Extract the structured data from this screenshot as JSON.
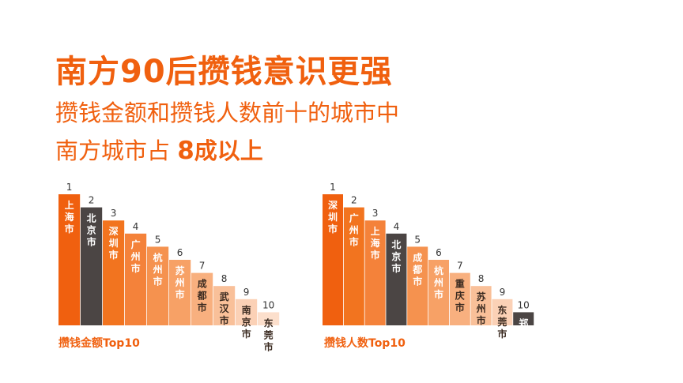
{
  "header": {
    "title": "南方90后攒钱意识更强",
    "subtitle_line1": "攒钱金额和攒钱人数前十的城市中",
    "subtitle_line2_a": "南方城市占 ",
    "subtitle_line2_num": "8",
    "subtitle_line2_b": "成以上"
  },
  "colors": {
    "accent": "#f0600f",
    "dark": "#4b4544",
    "gradient": [
      "#f0600f",
      "#f2741f",
      "#f4823a",
      "#f5924f",
      "#f7a166",
      "#f8b07f",
      "#f9c099",
      "#fbd1b6",
      "#fcdfcc"
    ]
  },
  "chart_data": [
    {
      "type": "bar",
      "caption": "攒钱金额Top10",
      "ranks": [
        "1",
        "2",
        "3",
        "4",
        "5",
        "6",
        "7",
        "8",
        "9",
        "10"
      ],
      "categories": [
        "上海市",
        "北京市",
        "深圳市",
        "广州市",
        "杭州市",
        "苏州市",
        "成都市",
        "武汉市",
        "南京市",
        "东莞市"
      ],
      "values": [
        10,
        9,
        8,
        7,
        6,
        5,
        4,
        3,
        2,
        1
      ],
      "highlight": "北京市"
    },
    {
      "type": "bar",
      "caption": "攒钱人数Top10",
      "ranks": [
        "1",
        "2",
        "3",
        "4",
        "5",
        "6",
        "7",
        "8",
        "9",
        "10"
      ],
      "categories": [
        "深圳市",
        "广州市",
        "上海市",
        "北京市",
        "成都市",
        "杭州市",
        "重庆市",
        "苏州市",
        "东莞市",
        "郑州市"
      ],
      "values": [
        10,
        9,
        8,
        7,
        6,
        5,
        4,
        3,
        2,
        1
      ],
      "highlight": [
        "北京市",
        "郑州市"
      ]
    }
  ]
}
